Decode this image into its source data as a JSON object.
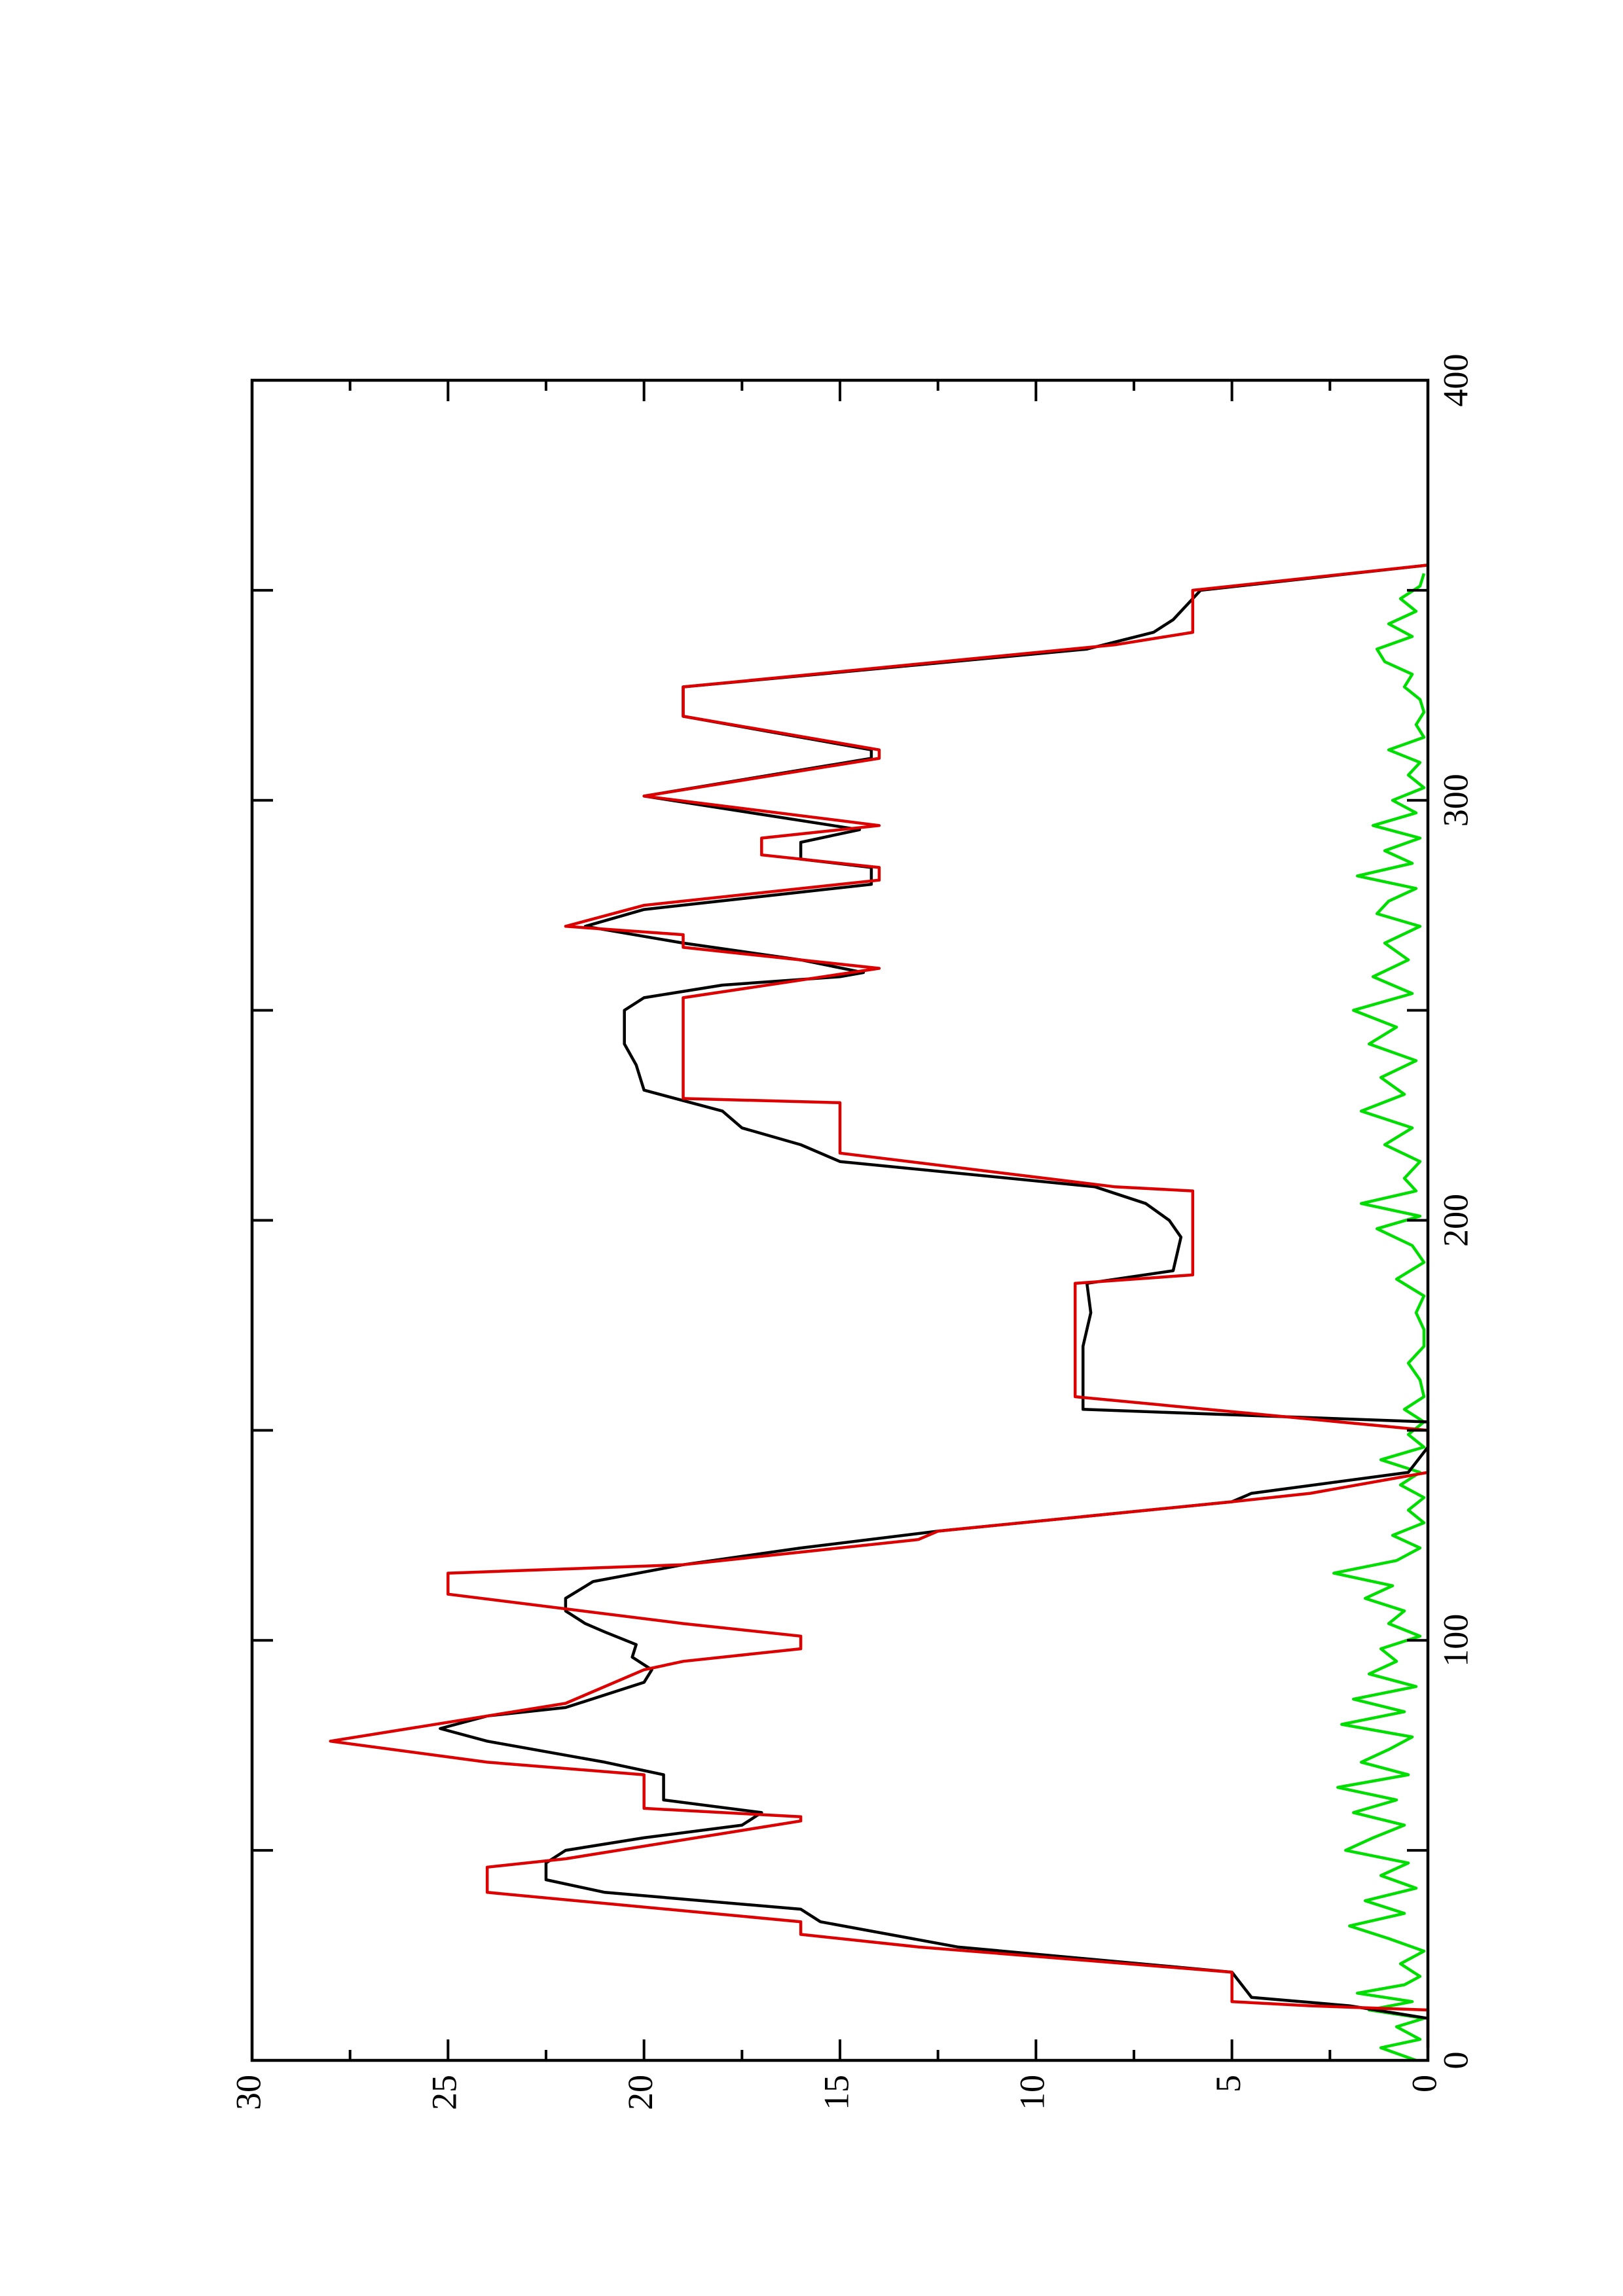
{
  "chart_data": {
    "type": "line",
    "xlim": [
      0,
      400
    ],
    "xticks": [
      0,
      100,
      200,
      300,
      400
    ],
    "xminor": [
      50,
      150,
      250,
      350
    ],
    "ylim": [
      0,
      30
    ],
    "yticks": [
      0,
      5,
      10,
      15,
      20,
      25,
      30
    ],
    "yminor": [
      2.5,
      7.5,
      12.5,
      17.5,
      22.5,
      27.5
    ],
    "rotated": true,
    "series": [
      {
        "color": "#00dd00",
        "x": [
          0,
          3,
          5,
          8,
          10,
          12,
          14,
          16,
          18,
          20,
          23,
          26,
          29,
          32,
          35,
          38,
          41,
          44,
          47,
          50,
          53,
          56,
          59,
          62,
          65,
          68,
          71,
          74,
          77,
          80,
          83,
          86,
          89,
          92,
          95,
          98,
          101,
          104,
          107,
          110,
          113,
          116,
          119,
          122,
          125,
          128,
          131,
          134,
          137,
          140,
          143,
          146,
          149,
          152,
          155,
          158,
          162,
          166,
          170,
          174,
          178,
          182,
          186,
          190,
          194,
          198,
          201,
          204,
          207,
          210,
          214,
          218,
          222,
          226,
          230,
          234,
          238,
          242,
          246,
          250,
          254,
          258,
          262,
          266,
          270,
          273,
          276,
          279,
          282,
          285,
          288,
          291,
          294,
          297,
          300,
          303,
          306,
          309,
          312,
          315,
          318,
          321,
          324,
          327,
          330,
          333,
          336,
          339,
          342,
          345,
          348,
          351,
          354
        ],
        "values": [
          0.3,
          1.2,
          0.2,
          0.8,
          0.1,
          1.5,
          0.4,
          1.8,
          0.6,
          0.2,
          0.7,
          0.1,
          1.0,
          2.0,
          0.6,
          1.6,
          0.3,
          1.2,
          0.5,
          2.1,
          1.4,
          0.6,
          1.9,
          0.8,
          2.3,
          0.5,
          1.7,
          1.0,
          0.4,
          2.2,
          0.6,
          1.9,
          0.3,
          1.5,
          0.8,
          1.2,
          0.2,
          1.0,
          0.6,
          1.6,
          0.9,
          2.4,
          0.8,
          0.2,
          0.9,
          0.1,
          0.5,
          0.1,
          0.7,
          0.2,
          1.2,
          0.1,
          0.5,
          0.1,
          0.6,
          0.1,
          0.2,
          0.5,
          0.1,
          0.1,
          0.3,
          0.1,
          0.8,
          0.1,
          0.4,
          1.3,
          0.2,
          1.7,
          0.3,
          0.6,
          0.2,
          1.1,
          0.4,
          1.7,
          0.6,
          1.2,
          0.3,
          1.5,
          0.8,
          1.9,
          0.4,
          1.4,
          0.5,
          1.1,
          0.2,
          1.3,
          1.0,
          0.3,
          1.8,
          0.4,
          1.1,
          0.2,
          1.4,
          0.3,
          0.9,
          0.1,
          0.5,
          0.2,
          1.0,
          0.1,
          0.3,
          0.1,
          0.2,
          0.6,
          0.4,
          1.1,
          1.3,
          0.4,
          1.0,
          0.3,
          0.7,
          0.2,
          0.1
        ]
      },
      {
        "color": "#000000",
        "x": [
          10,
          13,
          15,
          21,
          27,
          33,
          36,
          40,
          43,
          47,
          50,
          53,
          56,
          59,
          62,
          68,
          71,
          76,
          79,
          82,
          84,
          90,
          93,
          96,
          99,
          102,
          104,
          107,
          110,
          114,
          118,
          120,
          122,
          126,
          133,
          135,
          140,
          146,
          150,
          152,
          155,
          170,
          178,
          185,
          188,
          196,
          200,
          204,
          208,
          214,
          218,
          222,
          226,
          231,
          237,
          242,
          250,
          253,
          256,
          258,
          259,
          262,
          266,
          270,
          274,
          280,
          284,
          286,
          290,
          293,
          301,
          310,
          312,
          320,
          327,
          336,
          340,
          343,
          350,
          356
        ],
        "values": [
          0,
          2,
          4.5,
          5,
          12,
          15.5,
          16,
          21,
          22.5,
          22.5,
          22,
          20,
          17.5,
          17,
          19.5,
          19.5,
          21,
          24,
          25.2,
          24,
          22,
          20,
          19.8,
          20.3,
          20.2,
          21,
          21.5,
          22,
          22,
          21.3,
          19,
          17.5,
          16,
          12.5,
          5,
          4.5,
          0.5,
          0,
          0,
          0,
          8.8,
          8.8,
          8.6,
          8.7,
          6.5,
          6.3,
          6.6,
          7.2,
          8.5,
          15,
          16,
          17.5,
          18,
          20,
          20.2,
          20.5,
          20.5,
          20,
          18,
          15,
          14.4,
          16,
          19,
          21.5,
          20,
          14.2,
          14.2,
          16,
          16,
          14.5,
          20,
          14.2,
          14.2,
          19,
          19,
          8.7,
          7,
          6.5,
          5.8,
          0
        ]
      },
      {
        "color": "#dd0000",
        "x": [
          3,
          12,
          13,
          14,
          21,
          27,
          30,
          33,
          40,
          46,
          48,
          57,
          58,
          60,
          68,
          71,
          76,
          82,
          85,
          93,
          95,
          98,
          101,
          104,
          111,
          116,
          118,
          124,
          126,
          133,
          135,
          140,
          150,
          158,
          185,
          187,
          207,
          208,
          216,
          228,
          229,
          253,
          260,
          265,
          268,
          270,
          275,
          281,
          284,
          287,
          291,
          294,
          301,
          310,
          312,
          320,
          327,
          337,
          340,
          350,
          356
        ],
        "values": [
          0,
          0,
          3,
          5,
          5,
          13,
          16,
          16,
          24,
          24,
          22,
          16,
          16,
          20,
          20,
          24,
          28,
          24,
          22,
          20,
          19,
          16,
          16,
          19,
          25,
          25,
          19,
          13,
          12.5,
          5,
          3,
          0,
          0,
          9,
          9,
          6,
          6,
          8,
          15,
          15,
          19,
          19,
          14,
          19,
          19,
          22,
          20,
          14,
          14,
          17,
          17,
          14,
          20,
          14,
          14,
          19,
          19,
          8,
          6,
          6,
          0
        ]
      }
    ]
  }
}
